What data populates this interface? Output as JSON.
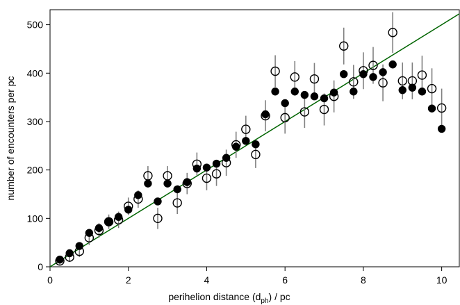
{
  "chart_data": {
    "type": "scatter",
    "x_label": [
      "perihelion distance (d",
      "ph",
      ") / pc"
    ],
    "y_label": "number of encounters per pc",
    "x": [
      0.25,
      0.5,
      0.75,
      1.0,
      1.25,
      1.5,
      1.75,
      2.0,
      2.25,
      2.5,
      2.75,
      3.0,
      3.25,
      3.5,
      3.75,
      4.0,
      4.25,
      4.5,
      4.75,
      5.0,
      5.25,
      5.5,
      5.75,
      6.0,
      6.25,
      6.5,
      6.75,
      7.0,
      7.25,
      7.5,
      7.75,
      8.0,
      8.25,
      8.5,
      8.75,
      9.0,
      9.25,
      9.5,
      9.75,
      10.0
    ],
    "series": [
      {
        "marker": "filled",
        "color": "#000000",
        "values": [
          15,
          28,
          43,
          70,
          80,
          93,
          103,
          118,
          148,
          172,
          135,
          172,
          160,
          175,
          203,
          205,
          213,
          225,
          248,
          260,
          253,
          315,
          362,
          338,
          362,
          355,
          352,
          348,
          360,
          398,
          362,
          398,
          392,
          402,
          418,
          365,
          370,
          362,
          327,
          285
        ]
      },
      {
        "marker": "open",
        "color": "#000000",
        "error_color": "#808080",
        "values": [
          12,
          20,
          32,
          60,
          75,
          93,
          97,
          125,
          140,
          188,
          100,
          188,
          132,
          172,
          212,
          183,
          192,
          215,
          252,
          284,
          232,
          312,
          404,
          308,
          392,
          320,
          388,
          325,
          352,
          456,
          382,
          405,
          416,
          380,
          484,
          384,
          384,
          396,
          368,
          328
        ],
        "errors": [
          8,
          10,
          12,
          15,
          15,
          15,
          17,
          18,
          18,
          20,
          22,
          20,
          23,
          22,
          24,
          25,
          25,
          27,
          27,
          28,
          28,
          32,
          33,
          33,
          33,
          33,
          33,
          33,
          33,
          38,
          35,
          38,
          38,
          38,
          42,
          38,
          38,
          40,
          42,
          40
        ]
      }
    ],
    "fit": {
      "x": [
        0,
        10.45
      ],
      "values": [
        0,
        522.5
      ],
      "color": "#006400"
    },
    "xlim": [
      0,
      10.45
    ],
    "ylim": [
      0,
      531
    ],
    "xticks": [
      0,
      2,
      4,
      6,
      8,
      10
    ],
    "yticks": [
      0,
      100,
      200,
      300,
      400,
      500
    ]
  }
}
